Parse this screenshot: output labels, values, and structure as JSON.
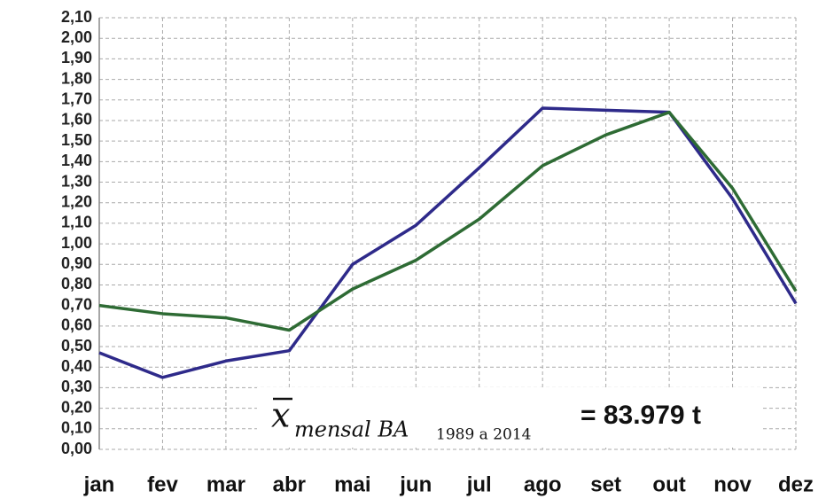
{
  "chart_data": {
    "type": "line",
    "categories": [
      "jan",
      "fev",
      "mar",
      "abr",
      "mai",
      "jun",
      "jul",
      "ago",
      "set",
      "out",
      "nov",
      "dez"
    ],
    "series": [
      {
        "color": "#2e2a8a",
        "values": [
          0.47,
          0.35,
          0.43,
          0.48,
          0.9,
          1.09,
          1.37,
          1.66,
          1.65,
          1.64,
          1.22,
          0.71
        ]
      },
      {
        "color": "#2e6b34",
        "values": [
          0.7,
          0.66,
          0.64,
          0.58,
          0.78,
          0.92,
          1.12,
          1.38,
          1.53,
          1.64,
          1.27,
          0.77
        ]
      }
    ],
    "ylim": [
      0,
      2.1
    ],
    "yticks": [
      {
        "value": 0,
        "label": "0,00"
      },
      {
        "value": 0.1,
        "label": "0,10"
      },
      {
        "value": 0.2,
        "label": "0,20"
      },
      {
        "value": 0.3,
        "label": "0,30"
      },
      {
        "value": 0.4,
        "label": "0,40"
      },
      {
        "value": 0.5,
        "label": "0,50"
      },
      {
        "value": 0.6,
        "label": "0,60"
      },
      {
        "value": 0.7,
        "label": "0,70"
      },
      {
        "value": 0.8,
        "label": "0,80"
      },
      {
        "value": 0.9,
        "label": "0,90"
      },
      {
        "value": 1.0,
        "label": "1,00"
      },
      {
        "value": 1.1,
        "label": "1,10"
      },
      {
        "value": 1.2,
        "label": "1,20"
      },
      {
        "value": 1.3,
        "label": "1,30"
      },
      {
        "value": 1.4,
        "label": "1,40"
      },
      {
        "value": 1.5,
        "label": "1,50"
      },
      {
        "value": 1.6,
        "label": "1,60"
      },
      {
        "value": 1.7,
        "label": "1,70"
      },
      {
        "value": 1.8,
        "label": "1,80"
      },
      {
        "value": 1.9,
        "label": "1,90"
      },
      {
        "value": 2.0,
        "label": "2,00"
      },
      {
        "value": 2.1,
        "label": "2,10"
      }
    ],
    "grid": true,
    "annotation": {
      "symbol": "x",
      "subscript": "mensal BA",
      "period": "1989 a 2014",
      "result": "= 83.979 t"
    }
  }
}
